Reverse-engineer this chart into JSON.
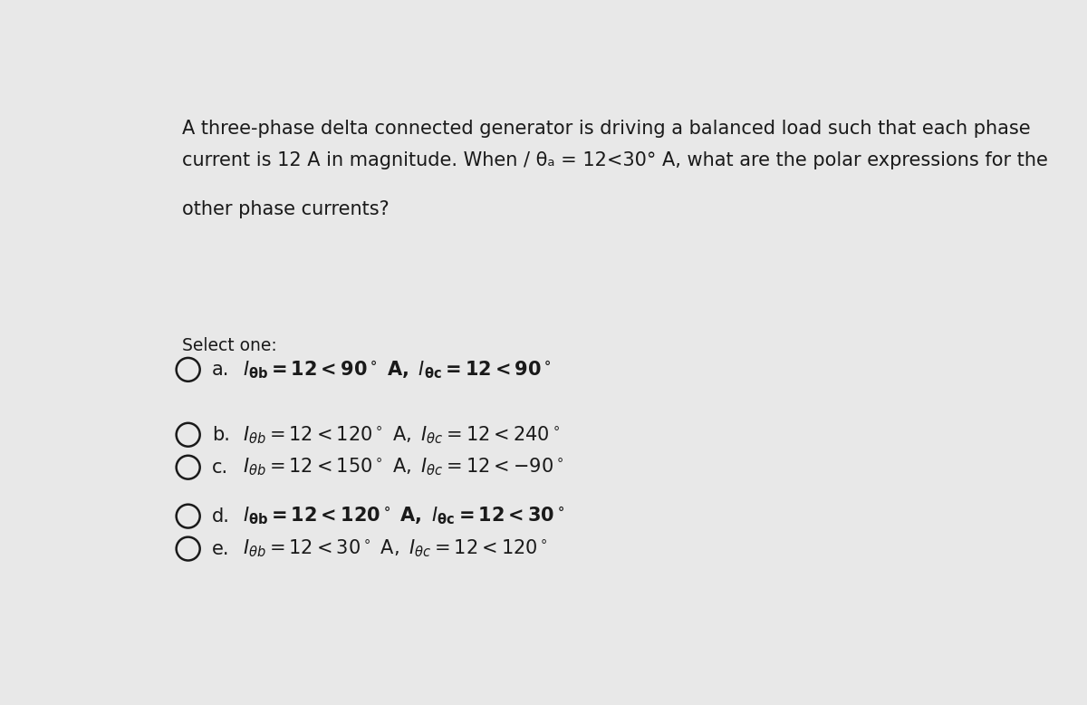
{
  "background_color": "#e8e8e8",
  "text_color": "#1a1a1a",
  "question_line1": "A three-phase delta connected generator is driving a balanced load such that each phase",
  "question_line2": "current is 12 A in magnitude. When / θₐ = 12<30° A, what are the polar expressions for the",
  "question_line3": "other phase currents?",
  "select_one": "Select one:",
  "option_a_text": "$\\mathbf{\\mathit{I}_{\\theta b} = 12{<}90^\\circ\\ A,\\ \\mathit{I}_{\\theta c} = 12{<}90^\\circ}$",
  "option_b_text": "$\\mathit{I}_{\\theta b} = 12{<}120^\\circ\\ \\mathrm{A},\\ \\mathit{I}_{\\theta c} = 12{<}240^\\circ$",
  "option_c_text": "$\\mathit{I}_{\\theta b} = 12{<}150^\\circ\\ \\mathrm{A},\\ \\mathit{I}_{\\theta c} = 12{<}{-}90^\\circ$",
  "option_d_text": "$\\mathbf{\\mathit{I}_{\\theta b} = 12{<}120^\\circ\\ A,\\ \\mathit{I}_{\\theta c} = 12{<}30^\\circ}$",
  "option_e_text": "$\\mathit{I}_{\\theta b} = 12{<}30^\\circ\\ \\mathrm{A},\\ \\mathit{I}_{\\theta c} = 12{<}120^\\circ$",
  "letters": [
    "a.",
    "b.",
    "c.",
    "d.",
    "e."
  ],
  "bold_options": [
    true,
    false,
    false,
    true,
    false
  ],
  "circle_color": "#1a1a1a",
  "font_size_question": 15,
  "font_size_select": 13.5,
  "font_size_options": 15
}
